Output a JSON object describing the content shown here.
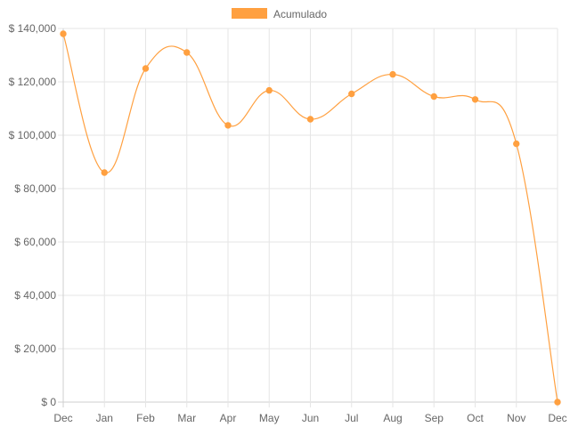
{
  "chart_data": {
    "type": "line",
    "title": "",
    "xlabel": "",
    "ylabel": "",
    "categories": [
      "Dec",
      "Jan",
      "Feb",
      "Mar",
      "Apr",
      "May",
      "Jun",
      "Jul",
      "Aug",
      "Sep",
      "Oct",
      "Nov",
      "Dec"
    ],
    "series": [
      {
        "name": "Acumulado",
        "color": "#FFA040",
        "values": [
          138000,
          86000,
          125000,
          131000,
          103700,
          116800,
          106000,
          115500,
          122800,
          114500,
          113400,
          96800,
          0
        ]
      }
    ],
    "ylim": [
      0,
      140000
    ],
    "yticks": [
      0,
      20000,
      40000,
      60000,
      80000,
      100000,
      120000,
      140000
    ],
    "ytick_labels": [
      "$ 0",
      "$ 20,000",
      "$ 40,000",
      "$ 60,000",
      "$ 80,000",
      "$ 100,000",
      "$ 120,000",
      "$ 140,000"
    ],
    "grid": true,
    "legend_position": "top-center",
    "curve": "smooth"
  }
}
